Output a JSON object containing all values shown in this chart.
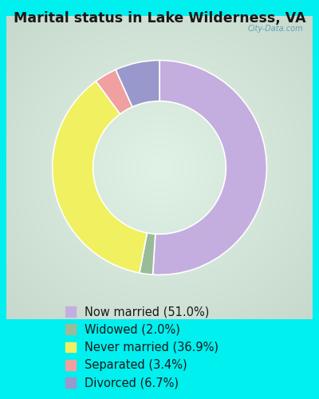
{
  "title": "Marital status in Lake Wilderness, VA",
  "outer_bg_color": "#00EFEF",
  "chart_bg_color": "#cce8d8",
  "slices": [
    {
      "label": "Now married (51.0%)",
      "value": 51.0,
      "color": "#c4aee0"
    },
    {
      "label": "Widowed (2.0%)",
      "value": 2.0,
      "color": "#9abb9a"
    },
    {
      "label": "Never married (36.9%)",
      "value": 36.9,
      "color": "#f0f060"
    },
    {
      "label": "Separated (3.4%)",
      "value": 3.4,
      "color": "#f0a0a0"
    },
    {
      "label": "Divorced (6.7%)",
      "value": 6.7,
      "color": "#9898cc"
    }
  ],
  "watermark": "City-Data.com",
  "donut_width": 0.38,
  "start_angle": 90,
  "title_fontsize": 12.5,
  "legend_fontsize": 10.5
}
